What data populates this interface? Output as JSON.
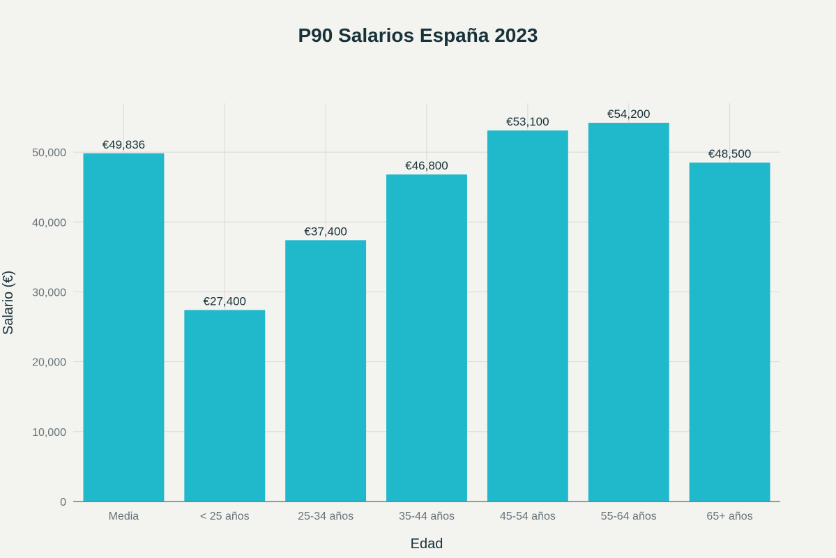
{
  "chart_data": {
    "type": "bar",
    "title": "P90 Salarios España 2023",
    "xlabel": "Edad",
    "ylabel": "Salario (€)",
    "categories": [
      "Media",
      "< 25 años",
      "25-34 años",
      "35-44 años",
      "45-54 años",
      "55-64 años",
      "65+ años"
    ],
    "values": [
      49836,
      27400,
      37400,
      46800,
      53100,
      54200,
      48500
    ],
    "value_labels": [
      "€49,836",
      "€27,400",
      "€37,400",
      "€46,800",
      "€53,100",
      "€54,200",
      "€48,500"
    ],
    "ylim": [
      0,
      57000
    ],
    "yticks": [
      0,
      10000,
      20000,
      30000,
      40000,
      50000
    ],
    "ytick_labels": [
      "0",
      "10,000",
      "20,000",
      "30,000",
      "40,000",
      "50,000"
    ],
    "grid": true,
    "colors": {
      "bar": "#20b8cb",
      "background": "#f3f3ef",
      "grid": "#d9d9d4",
      "axis": "#5c666b",
      "text": "#18323a",
      "tick_text": "#66737a"
    }
  }
}
